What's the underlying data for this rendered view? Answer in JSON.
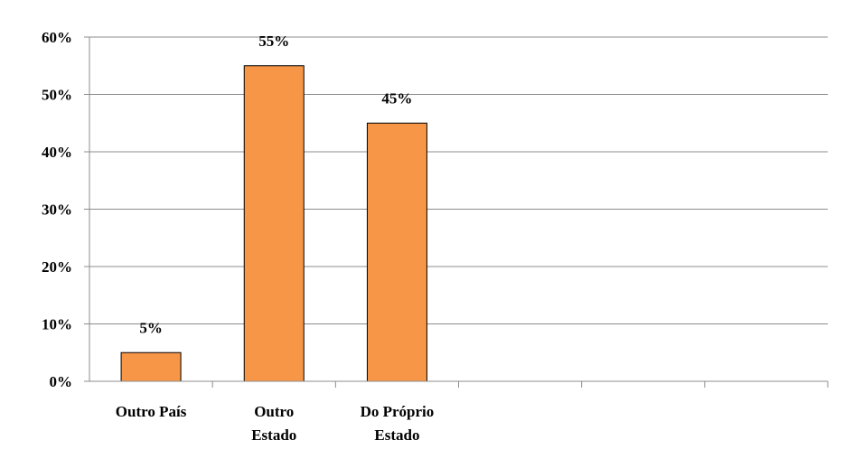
{
  "chart_data": {
    "type": "bar",
    "categories": [
      [
        "Outro País"
      ],
      [
        "Outro",
        "Estado"
      ],
      [
        "Do Próprio",
        "Estado"
      ],
      [
        ""
      ],
      [
        ""
      ],
      [
        ""
      ]
    ],
    "values": [
      5,
      55,
      45,
      null,
      null,
      null
    ],
    "data_labels": [
      "5%",
      "55%",
      "45%",
      "",
      "",
      ""
    ],
    "title": "",
    "xlabel": "",
    "ylabel": "",
    "ylim": [
      0,
      60
    ],
    "yticks": [
      0,
      10,
      20,
      30,
      40,
      50,
      60
    ],
    "ytick_labels": [
      "0%",
      "10%",
      "20%",
      "30%",
      "40%",
      "50%",
      "60%"
    ],
    "grid": true,
    "legend": "none",
    "colors": {
      "bar_fill": "#f79646",
      "bar_stroke": "#000000",
      "grid": "#8c8c8c"
    }
  }
}
